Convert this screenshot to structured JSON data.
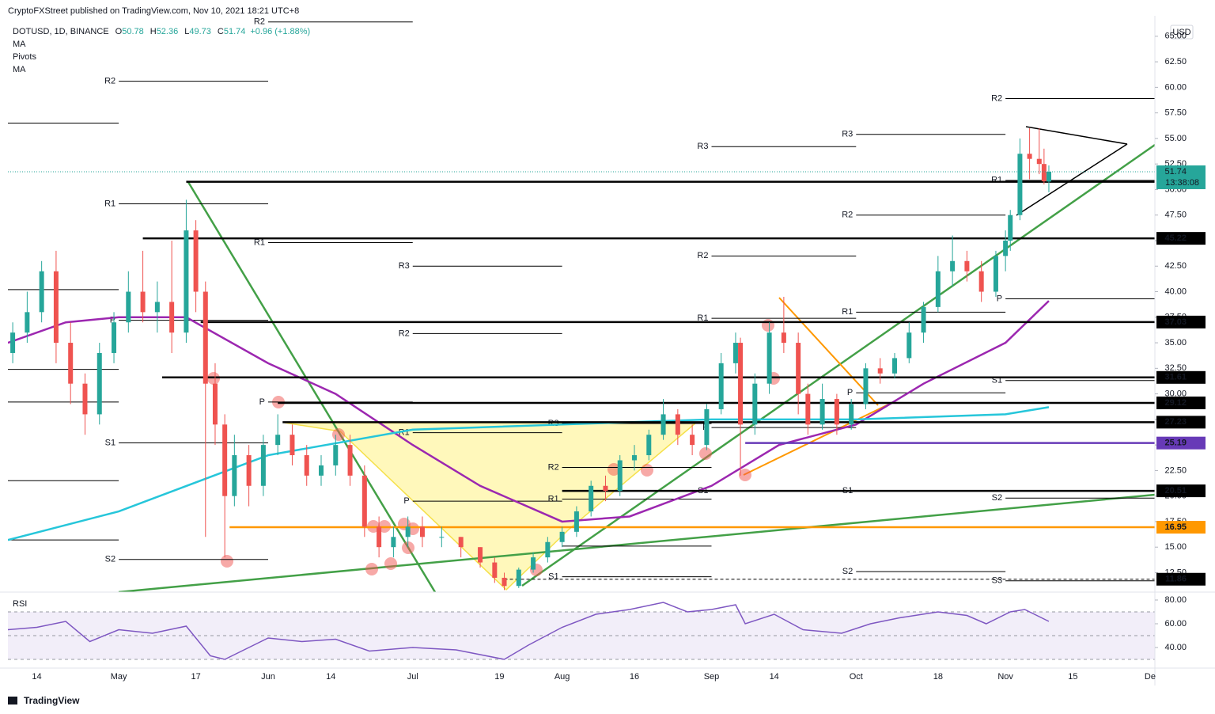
{
  "header": "CryptoFXStreet published on TradingView.com, Nov 10, 2021 18:21 UTC+8",
  "footer": "TradingView",
  "chart_data": {
    "type": "candlestick",
    "symbol": "DOTUSD, 1D, BINANCE",
    "ohlc": [
      {
        "key": "O",
        "value": 50.78
      },
      {
        "key": "H",
        "value": 52.36
      },
      {
        "key": "L",
        "value": 49.73
      },
      {
        "key": "C",
        "value": 51.74
      }
    ],
    "change": "+0.96 (+1.88%)",
    "indicators": [
      "MA",
      "Pivots",
      "MA"
    ],
    "currency": "USD",
    "xlim": [
      "2021-04-08",
      "2021-12-02"
    ],
    "xticks": [
      {
        "value": "2021-04-14",
        "label": "14"
      },
      {
        "value": "2021-05-01",
        "label": "May"
      },
      {
        "value": "2021-05-17",
        "label": "17"
      },
      {
        "value": "2021-06-01",
        "label": "Jun"
      },
      {
        "value": "2021-06-14",
        "label": "14"
      },
      {
        "value": "2021-07-01",
        "label": "Jul"
      },
      {
        "value": "2021-07-19",
        "label": "19"
      },
      {
        "value": "2021-08-01",
        "label": "Aug"
      },
      {
        "value": "2021-08-16",
        "label": "16"
      },
      {
        "value": "2021-09-01",
        "label": "Sep"
      },
      {
        "value": "2021-09-14",
        "label": "14"
      },
      {
        "value": "2021-10-01",
        "label": "Oct"
      },
      {
        "value": "2021-10-18",
        "label": "18"
      },
      {
        "value": "2021-11-01",
        "label": "Nov"
      },
      {
        "value": "2021-11-15",
        "label": "15"
      },
      {
        "value": "2021-12-01",
        "label": "De"
      }
    ],
    "ylim": [
      10.6,
      67
    ],
    "yticks": [
      {
        "value": 12.5,
        "label": "12.50"
      },
      {
        "value": 15,
        "label": "15.00"
      },
      {
        "value": 17.5,
        "label": "17.50"
      },
      {
        "value": 20,
        "label": "20.00"
      },
      {
        "value": 22.5,
        "label": "22.50"
      },
      {
        "value": 25,
        "label": "25.00"
      },
      {
        "value": 27.5,
        "label": "27.50"
      },
      {
        "value": 30,
        "label": "30.00"
      },
      {
        "value": 32.5,
        "label": "32.50"
      },
      {
        "value": 35,
        "label": "35.00"
      },
      {
        "value": 37.5,
        "label": "37.50"
      },
      {
        "value": 40,
        "label": "40.00"
      },
      {
        "value": 42.5,
        "label": "42.50"
      },
      {
        "value": 45,
        "label": "45.00"
      },
      {
        "value": 47.5,
        "label": "47.50"
      },
      {
        "value": 50,
        "label": "50.00"
      },
      {
        "value": 52.5,
        "label": "52.50"
      },
      {
        "value": 55,
        "label": "55.00"
      },
      {
        "value": 57.5,
        "label": "57.50"
      },
      {
        "value": 60,
        "label": "60.00"
      },
      {
        "value": 62.5,
        "label": "62.50"
      },
      {
        "value": 65,
        "label": "65.00"
      }
    ],
    "up_color": "#26a69a",
    "down_color": "#ef5350",
    "candles": {
      "dates": [
        "2021-04-09",
        "2021-04-12",
        "2021-04-15",
        "2021-04-18",
        "2021-04-21",
        "2021-04-24",
        "2021-04-27",
        "2021-04-30",
        "2021-05-03",
        "2021-05-06",
        "2021-05-09",
        "2021-05-12",
        "2021-05-15",
        "2021-05-17",
        "2021-05-19",
        "2021-05-21",
        "2021-05-23",
        "2021-05-25",
        "2021-05-28",
        "2021-05-31",
        "2021-06-03",
        "2021-06-06",
        "2021-06-09",
        "2021-06-12",
        "2021-06-15",
        "2021-06-18",
        "2021-06-21",
        "2021-06-24",
        "2021-06-27",
        "2021-06-30",
        "2021-07-03",
        "2021-07-07",
        "2021-07-11",
        "2021-07-15",
        "2021-07-18",
        "2021-07-20",
        "2021-07-23",
        "2021-07-26",
        "2021-07-29",
        "2021-08-01",
        "2021-08-04",
        "2021-08-07",
        "2021-08-10",
        "2021-08-13",
        "2021-08-16",
        "2021-08-19",
        "2021-08-22",
        "2021-08-25",
        "2021-08-28",
        "2021-08-31",
        "2021-09-03",
        "2021-09-06",
        "2021-09-07",
        "2021-09-10",
        "2021-09-13",
        "2021-09-16",
        "2021-09-19",
        "2021-09-21",
        "2021-09-24",
        "2021-09-27",
        "2021-09-30",
        "2021-10-03",
        "2021-10-06",
        "2021-10-09",
        "2021-10-12",
        "2021-10-15",
        "2021-10-18",
        "2021-10-21",
        "2021-10-24",
        "2021-10-27",
        "2021-10-30",
        "2021-11-01",
        "2021-11-02",
        "2021-11-04",
        "2021-11-06",
        "2021-11-08",
        "2021-11-09",
        "2021-11-10"
      ],
      "open": [
        34,
        36,
        38,
        42,
        35,
        31,
        28,
        34,
        37,
        40,
        38,
        39,
        36,
        46,
        40,
        31,
        27,
        20,
        24,
        21,
        25,
        26,
        24,
        22,
        23,
        25,
        22,
        17,
        15,
        16,
        17,
        16,
        16,
        15,
        13.5,
        12,
        11.2,
        12.8,
        14,
        15.5,
        16.5,
        18.5,
        21,
        20.5,
        23.5,
        24,
        26,
        28,
        26,
        25,
        28.5,
        33,
        35,
        27,
        31,
        36,
        35,
        30,
        27,
        29.5,
        27,
        29,
        32.5,
        32,
        33.5,
        36,
        38.5,
        42,
        43,
        42,
        40,
        43.5,
        45,
        47.5,
        53.5,
        53,
        52.5,
        50.78
      ],
      "high": [
        37,
        40,
        43,
        44,
        37,
        32,
        35,
        38,
        42,
        44,
        41,
        45,
        49,
        47,
        41,
        33,
        28,
        26,
        25,
        26,
        28,
        27,
        25,
        24,
        26,
        26,
        23,
        18,
        17,
        18,
        18,
        17,
        16,
        15,
        14,
        12.5,
        13,
        14.5,
        16,
        17,
        19,
        21.5,
        22,
        24,
        25,
        26.5,
        29.5,
        28.5,
        27,
        29,
        34,
        36,
        35.5,
        32,
        37,
        39.5,
        36,
        31,
        31,
        30,
        29.5,
        33,
        33.5,
        34,
        37,
        39,
        43.5,
        45.5,
        44,
        43,
        44,
        46,
        48,
        55,
        56,
        56,
        54,
        52.36
      ],
      "low": [
        33,
        35,
        37,
        33,
        29,
        26,
        27,
        33,
        36,
        37,
        36,
        34,
        35,
        38,
        16,
        25,
        14,
        19,
        19,
        20,
        24,
        23,
        21,
        21,
        22,
        21,
        16,
        14,
        14,
        15,
        15,
        15,
        14,
        13,
        11.5,
        10.8,
        11,
        12.5,
        13.5,
        15,
        16,
        18,
        19.5,
        20,
        22.5,
        23.5,
        25.5,
        25,
        24,
        24.5,
        28,
        32,
        22,
        26,
        30,
        34,
        28,
        26,
        26.5,
        26,
        26.5,
        28.5,
        31,
        31.5,
        33,
        35,
        38,
        40.5,
        41,
        39,
        39.5,
        42,
        44,
        47,
        51,
        51.5,
        50.5,
        49.73
      ],
      "close": [
        36,
        38,
        42,
        35,
        31,
        28,
        34,
        37,
        40,
        38,
        39,
        36,
        46,
        40,
        31,
        27,
        20,
        24,
        21,
        25,
        26,
        24,
        22,
        23,
        25,
        22,
        17,
        15,
        16,
        17,
        16,
        16,
        15,
        13.5,
        12,
        11.2,
        12.8,
        14,
        15.5,
        16.5,
        18.5,
        21,
        20.5,
        23.5,
        24,
        26,
        28,
        26,
        25,
        28.5,
        33,
        35,
        27,
        31,
        36,
        35,
        30,
        27,
        29.5,
        27,
        29,
        32.5,
        32,
        33.5,
        36,
        38.5,
        42,
        43,
        42,
        40,
        43.5,
        45,
        47.5,
        53.5,
        53,
        52.5,
        50.8,
        51.74
      ]
    },
    "moving_averages": [
      {
        "color": "#9c27b0",
        "x": [
          "2021-04-08",
          "2021-04-20",
          "2021-05-01",
          "2021-05-15",
          "2021-06-01",
          "2021-06-15",
          "2021-07-01",
          "2021-07-15",
          "2021-08-01",
          "2021-08-15",
          "2021-09-01",
          "2021-09-15",
          "2021-10-01",
          "2021-10-15",
          "2021-11-01",
          "2021-11-10"
        ],
        "values": [
          35,
          37,
          37.5,
          37.5,
          33,
          30,
          25,
          21,
          17.5,
          18,
          21,
          25,
          27,
          31,
          35,
          39.1
        ]
      },
      {
        "color": "#26c6da",
        "x": [
          "2021-04-08",
          "2021-05-01",
          "2021-06-01",
          "2021-07-01",
          "2021-08-01",
          "2021-09-01",
          "2021-10-01",
          "2021-11-01",
          "2021-11-10"
        ],
        "values": [
          15.7,
          18.5,
          24,
          26.5,
          27,
          27.5,
          27.5,
          28,
          28.7
        ]
      }
    ],
    "pivots": [
      {
        "label": null,
        "value": 56.5,
        "from": "2021-04-08",
        "to": "2021-05-01"
      },
      {
        "label": null,
        "value": 40.2,
        "from": "2021-04-08",
        "to": "2021-05-01"
      },
      {
        "label": null,
        "value": 32.4,
        "from": "2021-04-08",
        "to": "2021-05-01"
      },
      {
        "label": null,
        "value": 29.2,
        "from": "2021-04-08",
        "to": "2021-05-01"
      },
      {
        "label": null,
        "value": 21.5,
        "from": "2021-04-08",
        "to": "2021-05-01"
      },
      {
        "label": null,
        "value": 15.7,
        "from": "2021-04-08",
        "to": "2021-05-01"
      },
      {
        "label": "R2",
        "value": 60.6,
        "from": "2021-05-01",
        "to": "2021-06-01"
      },
      {
        "label": "R1",
        "value": 48.6,
        "from": "2021-05-01",
        "to": "2021-06-01"
      },
      {
        "label": "P",
        "value": 37.2,
        "from": "2021-05-01",
        "to": "2021-06-01"
      },
      {
        "label": "S1",
        "value": 25.2,
        "from": "2021-05-01",
        "to": "2021-06-01"
      },
      {
        "label": "S2",
        "value": 13.8,
        "from": "2021-05-01",
        "to": "2021-06-01"
      },
      {
        "label": "R2",
        "value": 66.4,
        "from": "2021-06-01",
        "to": "2021-07-01"
      },
      {
        "label": "R1",
        "value": 44.8,
        "from": "2021-06-01",
        "to": "2021-07-01"
      },
      {
        "label": "P",
        "value": 29.2,
        "from": "2021-06-01",
        "to": "2021-07-01"
      },
      {
        "label": "R3",
        "value": 42.5,
        "from": "2021-07-01",
        "to": "2021-08-01"
      },
      {
        "label": "R2",
        "value": 35.9,
        "from": "2021-07-01",
        "to": "2021-08-01"
      },
      {
        "label": "R1",
        "value": 26.2,
        "from": "2021-07-01",
        "to": "2021-08-01"
      },
      {
        "label": "P",
        "value": 19.5,
        "from": "2021-07-01",
        "to": "2021-08-01"
      },
      {
        "label": "R3",
        "value": 27.1,
        "from": "2021-08-01",
        "to": "2021-09-01"
      },
      {
        "label": "R2",
        "value": 22.8,
        "from": "2021-08-01",
        "to": "2021-09-01"
      },
      {
        "label": "R1",
        "value": 19.7,
        "from": "2021-08-01",
        "to": "2021-09-01"
      },
      {
        "label": null,
        "value": 15.1,
        "from": "2021-08-01",
        "to": "2021-09-01"
      },
      {
        "label": "S1",
        "value": 12.1,
        "from": "2021-08-01",
        "to": "2021-09-01"
      },
      {
        "label": "R3",
        "value": 54.2,
        "from": "2021-09-01",
        "to": "2021-10-01"
      },
      {
        "label": "R2",
        "value": 43.5,
        "from": "2021-09-01",
        "to": "2021-10-01"
      },
      {
        "label": "R1",
        "value": 37.4,
        "from": "2021-09-01",
        "to": "2021-10-01"
      },
      {
        "label": "P",
        "value": 26.7,
        "from": "2021-09-01",
        "to": "2021-10-01"
      },
      {
        "label": "S1",
        "value": 20.5,
        "from": "2021-09-01",
        "to": "2021-10-01"
      },
      {
        "label": "R3",
        "value": 55.4,
        "from": "2021-10-01",
        "to": "2021-11-01"
      },
      {
        "label": "R2",
        "value": 47.5,
        "from": "2021-10-01",
        "to": "2021-11-01"
      },
      {
        "label": "R1",
        "value": 38,
        "from": "2021-10-01",
        "to": "2021-11-01"
      },
      {
        "label": "P",
        "value": 30.1,
        "from": "2021-10-01",
        "to": "2021-11-01"
      },
      {
        "label": "S1",
        "value": 20.5,
        "from": "2021-10-01",
        "to": "2021-11-01"
      },
      {
        "label": "S2",
        "value": 12.6,
        "from": "2021-10-01",
        "to": "2021-11-01"
      },
      {
        "label": "R2",
        "value": 58.9,
        "from": "2021-11-01",
        "to": "2021-12-02"
      },
      {
        "label": "R1",
        "value": 50.9,
        "from": "2021-11-01",
        "to": "2021-12-02"
      },
      {
        "label": "P",
        "value": 39.3,
        "from": "2021-11-01",
        "to": "2021-12-02"
      },
      {
        "label": "S1",
        "value": 31.3,
        "from": "2021-11-01",
        "to": "2021-12-02"
      },
      {
        "label": "S2",
        "value": 19.8,
        "from": "2021-11-01",
        "to": "2021-12-02"
      },
      {
        "label": "S3",
        "value": 11.7,
        "from": "2021-11-01",
        "to": "2021-12-02"
      }
    ],
    "levels": [
      {
        "value": 50.76,
        "from": "2021-05-15",
        "color": "#000000"
      },
      {
        "value": 45.22,
        "from": "2021-05-06",
        "color": "#000000"
      },
      {
        "value": 37.03,
        "from": "2021-05-18",
        "color": "#000000"
      },
      {
        "value": 31.61,
        "from": "2021-05-10",
        "color": "#000000"
      },
      {
        "value": 29.12,
        "from": "2021-06-03",
        "color": "#000000"
      },
      {
        "value": 27.23,
        "from": "2021-06-04",
        "color": "#000000"
      },
      {
        "value": 25.19,
        "from": "2021-09-08",
        "color": "#673ab7"
      },
      {
        "value": 20.51,
        "from": "2021-08-01",
        "color": "#000000"
      },
      {
        "value": 16.95,
        "from": "2021-05-24",
        "color": "#ff9800"
      },
      {
        "value": 11.86,
        "from": "2021-07-20",
        "color": "#000000",
        "style": "dashed"
      }
    ],
    "last_price": {
      "value": 51.74,
      "countdown": "13:38:08",
      "color": "#26a69a"
    },
    "rsi": {
      "title": "RSI",
      "color": "#7e57c2",
      "ylim": [
        24,
        84
      ],
      "yticks": [
        {
          "value": 40,
          "label": "40.00"
        },
        {
          "value": 60,
          "label": "60.00"
        },
        {
          "value": 80,
          "label": "80.00"
        }
      ],
      "levels": [
        70,
        50,
        30
      ],
      "x": [
        "2021-04-08",
        "2021-04-14",
        "2021-04-20",
        "2021-04-25",
        "2021-05-01",
        "2021-05-08",
        "2021-05-15",
        "2021-05-20",
        "2021-05-23",
        "2021-06-01",
        "2021-06-08",
        "2021-06-15",
        "2021-06-22",
        "2021-07-01",
        "2021-07-10",
        "2021-07-20",
        "2021-07-25",
        "2021-08-01",
        "2021-08-08",
        "2021-08-15",
        "2021-08-22",
        "2021-08-27",
        "2021-09-01",
        "2021-09-06",
        "2021-09-08",
        "2021-09-14",
        "2021-09-20",
        "2021-09-28",
        "2021-10-04",
        "2021-10-10",
        "2021-10-18",
        "2021-10-24",
        "2021-10-28",
        "2021-11-02",
        "2021-11-05",
        "2021-11-10"
      ],
      "values": [
        55,
        57,
        62,
        45,
        55,
        52,
        58,
        33,
        30,
        48,
        45,
        47,
        37,
        40,
        38,
        30,
        42,
        57,
        68,
        72,
        78,
        70,
        72,
        76,
        60,
        68,
        55,
        52,
        60,
        65,
        70,
        67,
        60,
        70,
        72,
        62
      ]
    }
  }
}
